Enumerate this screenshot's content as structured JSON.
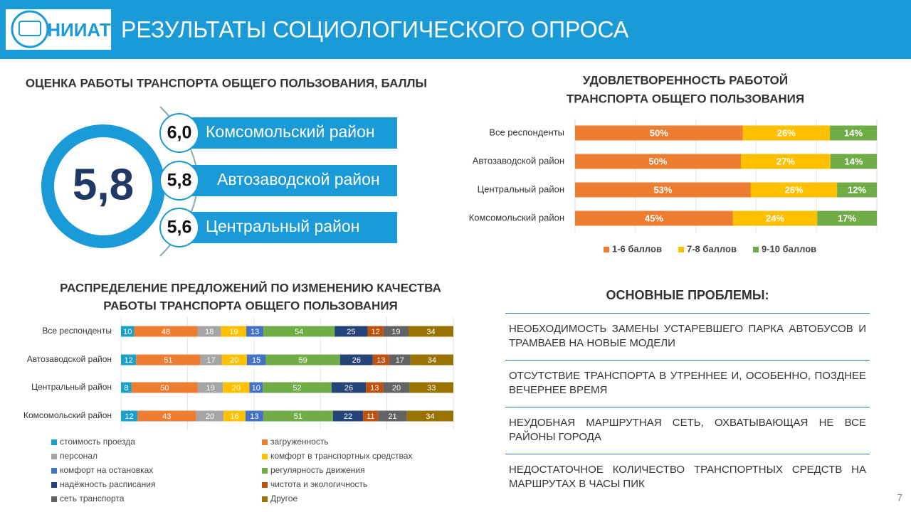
{
  "header": {
    "logo": "НИИАТ",
    "title": "РЕЗУЛЬТАТЫ СОЦИОЛОГИЧЕСКОГО ОПРОСА"
  },
  "scores": {
    "title": "ОЦЕНКА РАБОТЫ ТРАНСПОРТА ОБЩЕГО ПОЛЬЗОВАНИЯ, БАЛЛЫ",
    "overall": "5,8",
    "districts": [
      {
        "score": "6,0",
        "name": "Комсомольский район"
      },
      {
        "score": "5,8",
        "name": "Автозаводской район"
      },
      {
        "score": "5,6",
        "name": "Центральный район"
      }
    ]
  },
  "chart_data": [
    {
      "type": "bar",
      "orientation": "horizontal",
      "stacked": "percent",
      "title": [
        "УДОВЛЕТВОРЕННОСТЬ РАБОТОЙ",
        "ТРАНСПОРТА ОБЩЕГО ПОЛЬЗОВАНИЯ"
      ],
      "categories": [
        "Все респонденты",
        "Автозаводской район",
        "Центральный район",
        "Комсомольский район"
      ],
      "series": [
        {
          "name": "1-6 баллов",
          "color": "#ED7D31",
          "values": [
            50,
            50,
            53,
            45
          ],
          "value_labels": [
            "50%",
            "50%",
            "53%",
            "45%"
          ]
        },
        {
          "name": "7-8 баллов",
          "color": "#FFC000",
          "values": [
            26,
            27,
            26,
            24
          ],
          "value_labels": [
            "26%",
            "27%",
            "26%",
            "24%"
          ]
        },
        {
          "name": "9-10 баллов",
          "color": "#70AD47",
          "values": [
            14,
            14,
            12,
            17
          ],
          "value_labels": [
            "14%",
            "14%",
            "12%",
            "17%"
          ]
        }
      ],
      "legend": "bottom"
    },
    {
      "type": "bar",
      "orientation": "horizontal",
      "stacked": "percent",
      "title": [
        "РАСПРЕДЕЛЕНИЕ ПРЕДЛОЖЕНИЙ ПО ИЗМЕНЕНИЮ КАЧЕСТВА",
        "РАБОТЫ ТРАНСПОРТА ОБЩЕГО ПОЛЬЗОВАНИЯ"
      ],
      "categories": [
        "Все респонденты",
        "Автозаводской район",
        "Центральный район",
        "Комсомольский район"
      ],
      "series": [
        {
          "name": "стоимость проезда",
          "color": "#1BA1C9",
          "values": [
            10,
            12,
            8,
            12
          ]
        },
        {
          "name": "загруженность",
          "color": "#ED7D31",
          "values": [
            48,
            51,
            50,
            43
          ]
        },
        {
          "name": "персонал",
          "color": "#A5A5A5",
          "values": [
            18,
            17,
            19,
            20
          ]
        },
        {
          "name": "комфорт в транспортных средствах",
          "color": "#FFC000",
          "values": [
            19,
            20,
            20,
            16
          ]
        },
        {
          "name": "комфорт на остановках",
          "color": "#4472C4",
          "values": [
            13,
            15,
            10,
            13
          ]
        },
        {
          "name": "регулярность движения",
          "color": "#70AD47",
          "values": [
            54,
            59,
            52,
            51
          ]
        },
        {
          "name": "надёжность расписания",
          "color": "#264478",
          "values": [
            25,
            26,
            26,
            22
          ]
        },
        {
          "name": "чистота и экологичность",
          "color": "#C0500E",
          "values": [
            12,
            13,
            13,
            11
          ]
        },
        {
          "name": "сеть транспорта",
          "color": "#636363",
          "values": [
            19,
            17,
            20,
            21
          ]
        },
        {
          "name": "Другое",
          "color": "#997300",
          "values": [
            34,
            34,
            33,
            34
          ]
        }
      ],
      "legend": "bottom"
    }
  ],
  "problems": {
    "title": "ОСНОВНЫЕ ПРОБЛЕМЫ:",
    "items": [
      "НЕОБХОДИМОСТЬ ЗАМЕНЫ УСТАРЕВШЕГО ПАРКА АВТОБУСОВ И ТРАМВАЕВ НА НОВЫЕ МОДЕЛИ",
      "ОТСУТСТВИЕ ТРАНСПОРТА В УТРЕННЕЕ И, ОСОБЕННО, ПОЗДНЕЕ ВЕЧЕРНЕЕ ВРЕМЯ",
      "НЕУДОБНАЯ МАРШРУТНАЯ СЕТЬ, ОХВАТЫВАЮЩАЯ НЕ ВСЕ РАЙОНЫ ГОРОДА",
      "НЕДОСТАТОЧНОЕ КОЛИЧЕСТВО ТРАНСПОРТНЫХ СРЕДСТВ НА МАРШРУТАХ В ЧАСЫ ПИК"
    ]
  },
  "page_number": "7"
}
